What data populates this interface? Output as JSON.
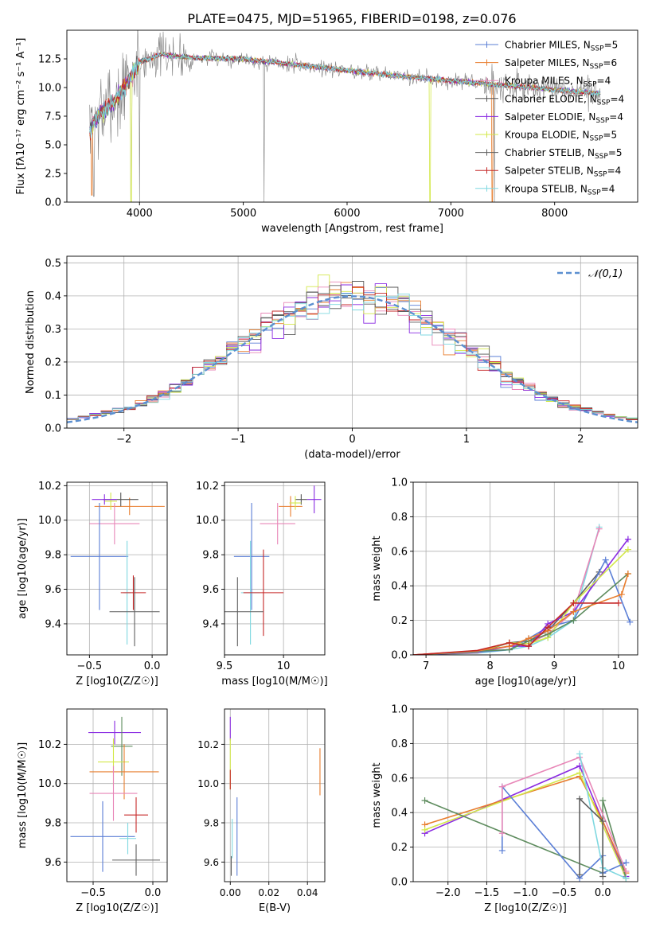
{
  "figure": {
    "title": "PLATE=0475, MJD=51965, FIBERID=0198, z=0.076"
  },
  "colors": {
    "cm": "#5b7fd6",
    "sm": "#e87d2d",
    "km": "#e887b8",
    "ce": "#555555",
    "se": "#8a2be2",
    "ke": "#d3e84a",
    "cs": "#5f5f5f",
    "ss": "#c62828",
    "ks": "#7fd8e0",
    "gray": "#808080",
    "green": "#5e8c5e",
    "gauss": "#5b8fd0"
  },
  "chart_data": [
    {
      "id": "spectrum",
      "type": "line",
      "title": "PLATE=0475, MJD=51965, FIBERID=0198, z=0.076",
      "xlabel": "wavelength [Angstrom, rest frame]",
      "ylabel": "Flux [fλ10⁻¹⁷ erg cm⁻² s⁻¹ A⁻¹]",
      "xlim": [
        3300,
        8800
      ],
      "ylim": [
        0,
        15
      ],
      "xticks": [
        4000,
        5000,
        6000,
        7000,
        8000
      ],
      "yticks": [
        0.0,
        2.5,
        5.0,
        7.5,
        10.0,
        12.5
      ],
      "legend_position": "top-right",
      "grid": false,
      "series": [
        {
          "name": "Chabrier MILES, N_SSP=5"
        },
        {
          "name": "Salpeter MILES, N_SSP=6"
        },
        {
          "name": "Kroupa MILES, N_SSP=4"
        },
        {
          "name": "Chabrier ELODIE, N_SSP=4"
        },
        {
          "name": "Salpeter ELODIE, N_SSP=4"
        },
        {
          "name": "Kroupa ELODIE, N_SSP=5"
        },
        {
          "name": "Chabrier STELIB, N_SSP=5"
        },
        {
          "name": "Salpeter STELIB, N_SSP=4"
        },
        {
          "name": "Kroupa STELIB, N_SSP=4"
        }
      ],
      "continuum": {
        "x": [
          3500,
          3600,
          3800,
          4000,
          4200,
          4500,
          5000,
          5500,
          6000,
          6500,
          7000,
          7500,
          8000,
          8400
        ],
        "y": [
          6.0,
          7.5,
          9.2,
          12.2,
          12.9,
          12.6,
          12.5,
          12.0,
          11.5,
          11.0,
          10.6,
          10.2,
          9.8,
          9.5
        ]
      }
    },
    {
      "id": "residual-histogram",
      "type": "histogram",
      "xlabel": "(data-model)/error",
      "ylabel": "Normed distribution",
      "xlim": [
        -2.5,
        2.5
      ],
      "ylim": [
        0,
        0.52
      ],
      "xticks": [
        -2,
        -1,
        0,
        1,
        2
      ],
      "yticks": [
        0.0,
        0.1,
        0.2,
        0.3,
        0.4,
        0.5
      ],
      "grid": true,
      "bin_width": 0.1,
      "reference": {
        "name": "𝒩(0,1)",
        "mean": 0,
        "sigma": 1
      }
    },
    {
      "id": "age-vs-Z",
      "type": "errorbar",
      "xlabel": "Z [log10(Z/Z☉)]",
      "ylabel": "age  [log10(age/yr)]",
      "xlim": [
        -0.68,
        0.12
      ],
      "ylim": [
        9.22,
        10.22
      ],
      "xticks": [
        -0.5,
        0.0
      ],
      "xtick_labels": [
        "−0.5",
        "0.0"
      ],
      "yticks": [
        9.4,
        9.6,
        9.8,
        10.0,
        10.2
      ],
      "grid": true,
      "points": [
        {
          "c": "sm",
          "x": -0.18,
          "xe": 0.28,
          "y": 10.08,
          "ye": 0.05
        },
        {
          "c": "ce",
          "x": -0.25,
          "xe": 0.14,
          "y": 10.12,
          "ye": 0.04
        },
        {
          "c": "ke",
          "x": -0.33,
          "xe": 0.05,
          "y": 10.11,
          "ye": 0.05
        },
        {
          "c": "se",
          "x": -0.38,
          "xe": 0.1,
          "y": 10.12,
          "ye": 0.03
        },
        {
          "c": "km",
          "x": -0.3,
          "xe": 0.2,
          "y": 9.98,
          "ye": 0.12
        },
        {
          "c": "cm",
          "x": -0.42,
          "xe": 0.23,
          "y": 9.79,
          "ye": 0.31
        },
        {
          "c": "ks",
          "x": -0.2,
          "xe": 0.03,
          "y": 9.58,
          "ye": 0.3
        },
        {
          "c": "ss",
          "x": -0.15,
          "xe": 0.1,
          "y": 9.58,
          "ye": 0.1
        },
        {
          "c": "cs",
          "x": -0.14,
          "xe": 0.2,
          "y": 9.47,
          "ye": 0.2
        }
      ]
    },
    {
      "id": "age-vs-mass",
      "type": "errorbar",
      "xlabel": "mass [log10(M/M☉)]",
      "xlim": [
        9.5,
        10.35
      ],
      "ylim": [
        9.22,
        10.22
      ],
      "xticks": [
        9.5,
        10.0
      ],
      "yticks": [
        9.4,
        9.6,
        9.8,
        10.0,
        10.2
      ],
      "grid": true,
      "points": [
        {
          "c": "sm",
          "x": 10.06,
          "xe": 0.1,
          "y": 10.08,
          "ye": 0.06
        },
        {
          "c": "ce",
          "x": 10.15,
          "xe": 0.05,
          "y": 10.12,
          "ye": 0.03
        },
        {
          "c": "ke",
          "x": 10.1,
          "xe": 0.05,
          "y": 10.1,
          "ye": 0.04
        },
        {
          "c": "se",
          "x": 10.26,
          "xe": 0.06,
          "y": 10.12,
          "ye": 0.08
        },
        {
          "c": "km",
          "x": 9.95,
          "xe": 0.15,
          "y": 9.98,
          "ye": 0.12
        },
        {
          "c": "cm",
          "x": 9.73,
          "xe": 0.15,
          "y": 9.79,
          "ye": 0.31
        },
        {
          "c": "ks",
          "x": 9.72,
          "xe": 0.08,
          "y": 9.58,
          "ye": 0.3
        },
        {
          "c": "ss",
          "x": 9.83,
          "xe": 0.17,
          "y": 9.58,
          "ye": 0.25
        },
        {
          "c": "cs",
          "x": 9.61,
          "xe": 0.22,
          "y": 9.47,
          "ye": 0.2
        }
      ]
    },
    {
      "id": "weight-vs-age",
      "type": "line",
      "xlabel": "age  [log10(age/yr)]",
      "ylabel": "mass weight",
      "xlim": [
        6.8,
        10.3
      ],
      "ylim": [
        0,
        1
      ],
      "xticks": [
        7,
        8,
        9,
        10
      ],
      "yticks": [
        0.0,
        0.2,
        0.4,
        0.6,
        0.8,
        1.0
      ],
      "grid": true
    },
    {
      "id": "mass-vs-Z",
      "type": "errorbar",
      "xlabel": "Z [log10(Z/Z☉)]",
      "ylabel": "mass [log10(M/M☉)]",
      "xlim": [
        -0.72,
        0.12
      ],
      "ylim": [
        9.5,
        10.38
      ],
      "xticks": [
        -0.5,
        0.0
      ],
      "xtick_labels": [
        "−0.5",
        "0.0"
      ],
      "yticks": [
        9.6,
        9.8,
        10.0,
        10.2
      ],
      "grid": true,
      "points": [
        {
          "c": "se",
          "x": -0.32,
          "xe": 0.22,
          "y": 10.26,
          "ye": 0.06
        },
        {
          "c": "green",
          "x": -0.26,
          "xe": 0.09,
          "y": 10.19,
          "ye": 0.15
        },
        {
          "c": "ke",
          "x": -0.33,
          "xe": 0.13,
          "y": 10.11,
          "ye": 0.12
        },
        {
          "c": "sm",
          "x": -0.24,
          "xe": 0.29,
          "y": 10.06,
          "ye": 0.14
        },
        {
          "c": "km",
          "x": -0.33,
          "xe": 0.2,
          "y": 9.95,
          "ye": 0.14
        },
        {
          "c": "ss",
          "x": -0.14,
          "xe": 0.1,
          "y": 9.84,
          "ye": 0.09
        },
        {
          "c": "cm",
          "x": -0.42,
          "xe": 0.27,
          "y": 9.73,
          "ye": 0.18
        },
        {
          "c": "ks",
          "x": -0.21,
          "xe": 0.07,
          "y": 9.72,
          "ye": 0.08
        },
        {
          "c": "cs",
          "x": -0.14,
          "xe": 0.2,
          "y": 9.61,
          "ye": 0.08
        }
      ]
    },
    {
      "id": "mass-vs-EBV",
      "type": "errorbar",
      "xlabel": "E(B-V)",
      "xlim": [
        -0.003,
        0.049
      ],
      "ylim": [
        9.5,
        10.38
      ],
      "xticks": [
        0.0,
        0.02,
        0.04
      ],
      "xtick_labels": [
        "0.00",
        "0.02",
        "0.04"
      ],
      "yticks": [
        9.6,
        9.8,
        10.0,
        10.2
      ],
      "grid": true,
      "points": [
        {
          "c": "se",
          "x": 0.0,
          "xe": 0,
          "y": 10.28,
          "ye": 0.06
        },
        {
          "c": "ke",
          "x": 0.0,
          "xe": 0,
          "y": 10.1,
          "ye": 0.13
        },
        {
          "c": "ss",
          "x": 0.0,
          "xe": 0,
          "y": 10.02,
          "ye": 0.05
        },
        {
          "c": "sm",
          "x": 0.0465,
          "xe": 0,
          "y": 10.06,
          "ye": 0.12
        },
        {
          "c": "cm",
          "x": 0.0035,
          "xe": 0,
          "y": 9.73,
          "ye": 0.2
        },
        {
          "c": "ks",
          "x": 0.001,
          "xe": 0,
          "y": 9.72,
          "ye": 0.1
        },
        {
          "c": "cs",
          "x": 0.0005,
          "xe": 0,
          "y": 9.58,
          "ye": 0.05
        }
      ]
    },
    {
      "id": "weight-vs-Z",
      "type": "line",
      "xlabel": "Z [log10(Z/Z☉)]",
      "ylabel": "mass weight",
      "xlim": [
        -2.45,
        0.45
      ],
      "ylim": [
        0,
        1
      ],
      "xticks": [
        -2.0,
        -1.5,
        -1.0,
        -0.5,
        0.0
      ],
      "xtick_labels": [
        "−2.0",
        "−1.5",
        "−1.0",
        "−0.5",
        "0.0"
      ],
      "yticks": [
        0.0,
        0.2,
        0.4,
        0.6,
        0.8,
        1.0
      ],
      "grid": true,
      "series": [
        {
          "c": "se",
          "x": [
            -2.3,
            -0.3,
            0.3
          ],
          "y": [
            0.28,
            0.67,
            0.03
          ]
        },
        {
          "c": "sm",
          "x": [
            -2.3,
            -0.3,
            0.0,
            0.3
          ],
          "y": [
            0.33,
            0.61,
            0.35,
            0.05
          ]
        },
        {
          "c": "ke",
          "x": [
            -2.3,
            -0.3,
            0.3
          ],
          "y": [
            0.3,
            0.63,
            0.02
          ]
        },
        {
          "c": "green",
          "x": [
            -2.3,
            0.0,
            0.0,
            0.3
          ],
          "y": [
            0.47,
            0.05,
            0.47,
            0.02
          ]
        },
        {
          "c": "cm",
          "x": [
            -1.3,
            -1.3,
            -0.3,
            0.0,
            0.0,
            0.3
          ],
          "y": [
            0.18,
            0.55,
            0.02,
            0.15,
            0.05,
            0.11
          ]
        },
        {
          "c": "km",
          "x": [
            -1.3,
            -1.3,
            -0.3,
            0.3
          ],
          "y": [
            0.28,
            0.55,
            0.72,
            0.06
          ]
        },
        {
          "c": "ks",
          "x": [
            -0.3,
            0.0,
            0.3
          ],
          "y": [
            0.74,
            0.08,
            0.02
          ]
        },
        {
          "c": "cs",
          "x": [
            -0.3,
            -0.3,
            0.0,
            0.0
          ],
          "y": [
            0.04,
            0.48,
            0.35,
            0.03
          ]
        }
      ]
    }
  ]
}
